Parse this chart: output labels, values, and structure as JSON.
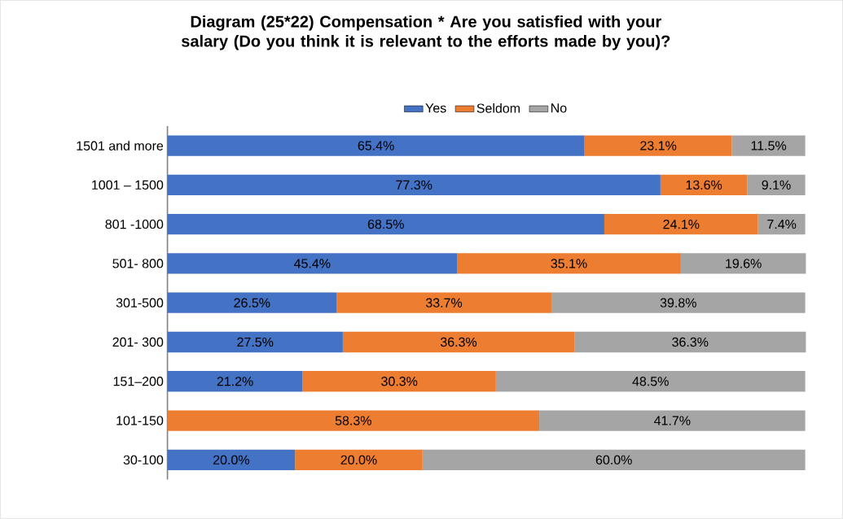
{
  "chart_data": {
    "type": "bar",
    "orientation": "horizontal",
    "stacked": true,
    "title": "Diagram (25*22) Compensation * Are you satisfied with your salary (Do you think it is relevant to the efforts made by you)?",
    "categories": [
      "1501 and more",
      "1001 – 1500",
      "801 -1000",
      "501- 800",
      "301-500",
      "201- 300",
      "151–200",
      "101-150",
      "30-100"
    ],
    "series": [
      {
        "name": "Yes",
        "color": "#4472c4",
        "values": [
          65.4,
          77.3,
          68.5,
          45.4,
          26.5,
          27.5,
          21.2,
          0,
          20.0
        ],
        "value_labels": [
          "65.4%",
          "77.3%",
          "68.5%",
          "45.4%",
          "26.5%",
          "27.5%",
          "21.2%",
          null,
          "20.0%"
        ]
      },
      {
        "name": "Seldom",
        "color": "#ed7d31",
        "values": [
          23.1,
          13.6,
          24.1,
          35.1,
          33.7,
          36.3,
          30.3,
          58.3,
          20.0
        ],
        "value_labels": [
          "23.1%",
          "13.6%",
          "24.1%",
          "35.1%",
          "33.7%",
          "36.3%",
          "30.3%",
          "58.3%",
          "20.0%"
        ]
      },
      {
        "name": "No",
        "color": "#a5a5a5",
        "values": [
          11.5,
          9.1,
          7.4,
          19.6,
          39.8,
          36.3,
          48.5,
          41.7,
          60.0
        ],
        "value_labels": [
          "11.5%",
          "9.1%",
          "7.4%",
          "19.6%",
          "39.8%",
          "36.3%",
          "48.5%",
          "41.7%",
          "60.0%"
        ]
      }
    ],
    "legend": "top"
  }
}
